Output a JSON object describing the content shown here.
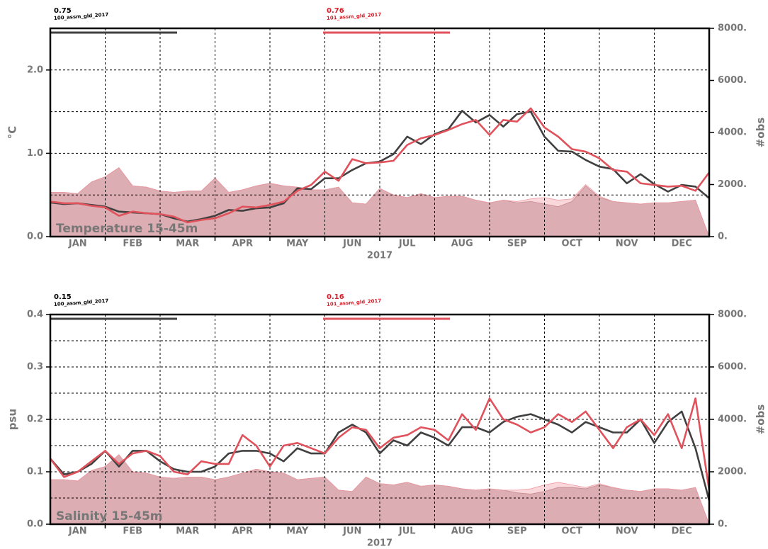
{
  "chart_data": [
    {
      "type": "line",
      "ylabel": "°C",
      "y2label": "#obs",
      "xlabel": "2017",
      "annotation": "Temperature 15-45m",
      "categories": [
        "JAN",
        "FEB",
        "MAR",
        "APR",
        "MAY",
        "JUN",
        "JUL",
        "AUG",
        "SEP",
        "OCT",
        "NOV",
        "DEC"
      ],
      "x": [
        0,
        0.25,
        0.5,
        0.75,
        1,
        1.25,
        1.5,
        1.75,
        2,
        2.25,
        2.5,
        2.75,
        3,
        3.25,
        3.5,
        3.75,
        4,
        4.25,
        4.5,
        4.75,
        5,
        5.25,
        5.5,
        5.75,
        6,
        6.25,
        6.5,
        6.75,
        7,
        7.25,
        7.5,
        7.75,
        8,
        8.25,
        8.5,
        8.75,
        9,
        9.25,
        9.5,
        9.75,
        10,
        10.25,
        10.5,
        10.75,
        11,
        11.25,
        11.5,
        11.75,
        12
      ],
      "xlim": [
        0,
        12
      ],
      "xgrid": [
        1,
        2,
        3,
        4,
        5,
        6,
        7,
        8,
        9,
        10,
        11
      ],
      "ylim": [
        0,
        2.5
      ],
      "yticks": [
        {
          "value": 0,
          "label": "0.0"
        },
        {
          "value": 1,
          "label": "1.0"
        },
        {
          "value": 2,
          "label": "2.0"
        }
      ],
      "yminor": [
        0.5,
        1.5
      ],
      "y2lim": [
        0,
        8000
      ],
      "y2ticks": [
        {
          "value": 0,
          "label": "0."
        },
        {
          "value": 2000,
          "label": "2000."
        },
        {
          "value": 4000,
          "label": "4000."
        },
        {
          "value": 6000,
          "label": "6000."
        },
        {
          "value": 8000,
          "label": "8000."
        }
      ],
      "grid": true,
      "series": [
        {
          "name": "100_assm_gld_2017",
          "score": 0.75,
          "color": "#404040",
          "values": [
            0.41,
            0.39,
            0.4,
            0.38,
            0.36,
            0.3,
            0.29,
            0.28,
            0.27,
            0.22,
            0.18,
            0.21,
            0.25,
            0.32,
            0.31,
            0.34,
            0.35,
            0.4,
            0.58,
            0.57,
            0.7,
            0.7,
            0.8,
            0.88,
            0.9,
            0.99,
            1.2,
            1.11,
            1.23,
            1.29,
            1.51,
            1.37,
            1.46,
            1.32,
            1.47,
            1.5,
            1.2,
            1.03,
            1.02,
            0.92,
            0.84,
            0.81,
            0.64,
            0.75,
            0.63,
            0.54,
            0.62,
            0.6,
            0.46
          ]
        },
        {
          "name": "101_assm_gld_2017",
          "score": 0.76,
          "color": "#e0525c",
          "values": [
            0.42,
            0.4,
            0.4,
            0.37,
            0.35,
            0.25,
            0.3,
            0.28,
            0.27,
            0.24,
            0.17,
            0.2,
            0.22,
            0.28,
            0.36,
            0.35,
            0.38,
            0.42,
            0.55,
            0.62,
            0.78,
            0.67,
            0.93,
            0.88,
            0.89,
            0.91,
            1.1,
            1.18,
            1.22,
            1.28,
            1.35,
            1.4,
            1.22,
            1.4,
            1.38,
            1.54,
            1.31,
            1.2,
            1.05,
            1.02,
            0.94,
            0.8,
            0.78,
            0.64,
            0.62,
            0.6,
            0.61,
            0.55,
            0.77
          ]
        }
      ],
      "obs_series": [
        {
          "color": "#a88088",
          "axis": "y2",
          "values": [
            1700,
            1700,
            1650,
            2100,
            2300,
            2650,
            1950,
            1900,
            1750,
            1700,
            1750,
            1750,
            2250,
            1700,
            1800,
            1950,
            2050,
            1950,
            1900,
            1800,
            1800,
            1900,
            1300,
            1250,
            1850,
            1600,
            1500,
            1650,
            1500,
            1550,
            1550,
            1400,
            1300,
            1400,
            1300,
            1350,
            1250,
            1150,
            1350,
            1950,
            1500,
            1350,
            1300,
            1250,
            1300,
            1300,
            1350,
            1400,
            0
          ]
        },
        {
          "color": "#f09aa2",
          "axis": "y2",
          "values": [
            1700,
            1700,
            1650,
            2100,
            2300,
            2650,
            1950,
            1900,
            1750,
            1700,
            1750,
            1750,
            2250,
            1700,
            1800,
            1950,
            2050,
            1950,
            1900,
            1800,
            1800,
            1900,
            1300,
            1250,
            1850,
            1600,
            1500,
            1650,
            1500,
            1550,
            1550,
            1400,
            1300,
            1400,
            1350,
            1450,
            1500,
            1400,
            1450,
            2000,
            1550,
            1350,
            1300,
            1250,
            1300,
            1300,
            1350,
            1400,
            0
          ]
        }
      ]
    },
    {
      "type": "line",
      "ylabel": "psu",
      "y2label": "#obs",
      "xlabel": "2017",
      "annotation": "Salinity 15-45m",
      "categories": [
        "JAN",
        "FEB",
        "MAR",
        "APR",
        "MAY",
        "JUN",
        "JUL",
        "AUG",
        "SEP",
        "OCT",
        "NOV",
        "DEC"
      ],
      "x": [
        0,
        0.25,
        0.5,
        0.75,
        1,
        1.25,
        1.5,
        1.75,
        2,
        2.25,
        2.5,
        2.75,
        3,
        3.25,
        3.5,
        3.75,
        4,
        4.25,
        4.5,
        4.75,
        5,
        5.25,
        5.5,
        5.75,
        6,
        6.25,
        6.5,
        6.75,
        7,
        7.25,
        7.5,
        7.75,
        8,
        8.25,
        8.5,
        8.75,
        9,
        9.25,
        9.5,
        9.75,
        10,
        10.25,
        10.5,
        10.75,
        11,
        11.25,
        11.5,
        11.75,
        12
      ],
      "xlim": [
        0,
        12
      ],
      "xgrid": [
        1,
        2,
        3,
        4,
        5,
        6,
        7,
        8,
        9,
        10,
        11
      ],
      "ylim": [
        0,
        0.4
      ],
      "yticks": [
        {
          "value": 0,
          "label": "0.0"
        },
        0.1,
        0.2,
        0.3,
        0.4
      ],
      "yminor": [
        0.05,
        0.15,
        0.25,
        0.35
      ],
      "y2lim": [
        0,
        8000
      ],
      "y2ticks": [
        {
          "value": 0,
          "label": "0."
        },
        {
          "value": 2000,
          "label": "2000."
        },
        {
          "value": 4000,
          "label": "4000."
        },
        {
          "value": 6000,
          "label": "6000."
        },
        {
          "value": 8000,
          "label": "8000."
        }
      ],
      "grid": true,
      "series": [
        {
          "name": "100_assm_gld_2017",
          "score": 0.15,
          "color": "#404040",
          "values": [
            0.125,
            0.095,
            0.1,
            0.115,
            0.14,
            0.11,
            0.14,
            0.14,
            0.12,
            0.105,
            0.1,
            0.1,
            0.11,
            0.135,
            0.14,
            0.14,
            0.135,
            0.12,
            0.145,
            0.135,
            0.135,
            0.175,
            0.19,
            0.175,
            0.135,
            0.16,
            0.15,
            0.175,
            0.165,
            0.15,
            0.185,
            0.185,
            0.175,
            0.195,
            0.205,
            0.21,
            0.2,
            0.19,
            0.175,
            0.195,
            0.185,
            0.175,
            0.175,
            0.2,
            0.155,
            0.195,
            0.215,
            0.145,
            0.045
          ]
        },
        {
          "name": "101_assm_gld_2017",
          "score": 0.16,
          "color": "#e0525c",
          "values": [
            0.125,
            0.09,
            0.1,
            0.12,
            0.14,
            0.115,
            0.135,
            0.14,
            0.13,
            0.1,
            0.095,
            0.12,
            0.115,
            0.115,
            0.17,
            0.15,
            0.11,
            0.15,
            0.155,
            0.145,
            0.135,
            0.165,
            0.185,
            0.18,
            0.145,
            0.165,
            0.17,
            0.185,
            0.18,
            0.16,
            0.21,
            0.18,
            0.24,
            0.2,
            0.19,
            0.175,
            0.185,
            0.21,
            0.195,
            0.215,
            0.18,
            0.145,
            0.185,
            0.2,
            0.17,
            0.21,
            0.145,
            0.24,
            0.065
          ]
        }
      ],
      "obs_series": [
        {
          "color": "#a88088",
          "axis": "y2",
          "values": [
            1700,
            1700,
            1650,
            2050,
            2200,
            2650,
            2000,
            1950,
            1800,
            1750,
            1800,
            1800,
            1700,
            1800,
            1950,
            2100,
            2000,
            1950,
            1700,
            1750,
            1800,
            1300,
            1250,
            1800,
            1550,
            1500,
            1600,
            1450,
            1500,
            1450,
            1350,
            1300,
            1350,
            1300,
            1200,
            1150,
            1250,
            1400,
            1400,
            1350,
            1500,
            1400,
            1300,
            1250,
            1350,
            1350,
            1300,
            1400,
            0
          ]
        },
        {
          "color": "#f09aa2",
          "axis": "y2",
          "values": [
            1700,
            1700,
            1650,
            2050,
            2200,
            2650,
            2000,
            1950,
            1800,
            1750,
            1800,
            1800,
            1700,
            1800,
            1950,
            2100,
            2000,
            1950,
            1700,
            1750,
            1800,
            1300,
            1250,
            1800,
            1550,
            1500,
            1600,
            1450,
            1500,
            1450,
            1350,
            1300,
            1350,
            1300,
            1300,
            1350,
            1500,
            1600,
            1500,
            1400,
            1550,
            1400,
            1300,
            1250,
            1350,
            1350,
            1300,
            1400,
            0
          ]
        }
      ]
    }
  ]
}
